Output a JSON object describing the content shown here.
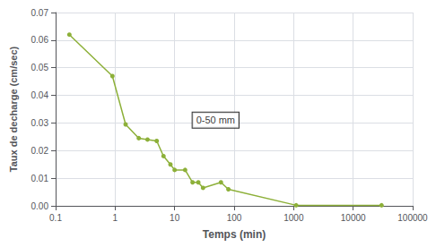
{
  "chart_data": {
    "type": "line",
    "x": [
      0.17,
      0.9,
      1.5,
      2.5,
      3.5,
      5.0,
      6.5,
      8.5,
      10.0,
      15.0,
      20.0,
      25.0,
      30.0,
      60.0,
      80.0,
      1100.0,
      30000.0
    ],
    "values": [
      0.062,
      0.047,
      0.0295,
      0.0245,
      0.024,
      0.0235,
      0.018,
      0.015,
      0.013,
      0.013,
      0.0085,
      0.0085,
      0.0065,
      0.0085,
      0.006,
      0.0002,
      0.0002
    ],
    "color": "#8DB039",
    "marker": "circle",
    "xlabel": "Temps (min)",
    "ylabel": "Taux de decharge (cm/sec)",
    "xlim": [
      0.1,
      100000
    ],
    "ylim": [
      0,
      0.07
    ],
    "xticks": [
      0.1,
      1,
      10,
      100,
      1000,
      10000,
      100000
    ],
    "yticks": [
      {
        "value": 0,
        "label": "0.00"
      },
      0.01,
      0.02,
      0.03,
      0.04,
      0.05,
      0.06,
      0.07
    ],
    "log": "x",
    "grid": true,
    "annotation": {
      "text": "0-50 mm",
      "x": 20,
      "y": 0.031
    }
  }
}
